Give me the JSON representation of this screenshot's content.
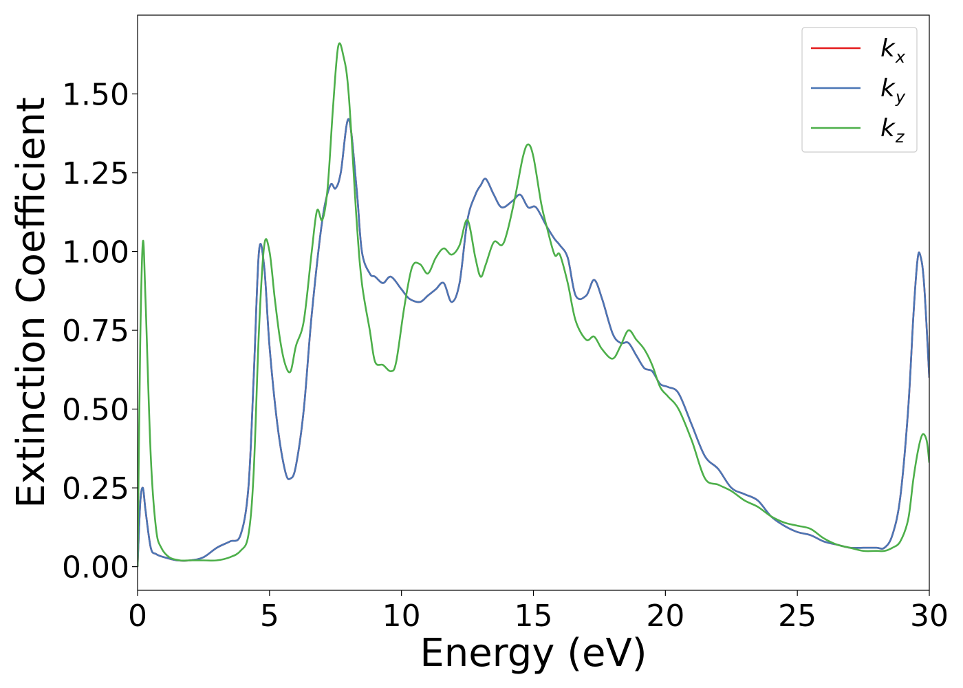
{
  "chart_data": {
    "type": "line",
    "xlabel": "Energy (eV)",
    "ylabel": "Extinction Coefficient",
    "xlim": [
      0,
      30
    ],
    "ylim": [
      -0.075,
      1.75
    ],
    "xticks": [
      0,
      5,
      10,
      15,
      20,
      25,
      30
    ],
    "xtick_labels": [
      "0",
      "5",
      "10",
      "15",
      "20",
      "25",
      "30"
    ],
    "yticks": [
      0,
      0.25,
      0.5,
      0.75,
      1.0,
      1.25,
      1.5
    ],
    "ytick_labels": [
      "0.00",
      "0.25",
      "0.50",
      "0.75",
      "1.00",
      "1.25",
      "1.50"
    ],
    "grid": false,
    "legend_position": "top-right",
    "series": [
      {
        "name": "k_x",
        "label_base": "k",
        "label_sub": "x",
        "color": "#e41a1c",
        "x": [
          0,
          0.1,
          0.2,
          0.3,
          0.5,
          0.7,
          1.0,
          1.5,
          2.0,
          2.5,
          3.0,
          3.5,
          3.9,
          4.2,
          4.4,
          4.6,
          4.8,
          5.0,
          5.3,
          5.6,
          5.8,
          6.0,
          6.3,
          6.6,
          7.0,
          7.3,
          7.5,
          7.7,
          8.0,
          8.3,
          8.5,
          8.8,
          9.0,
          9.3,
          9.6,
          10.0,
          10.3,
          10.7,
          11.0,
          11.3,
          11.6,
          11.9,
          12.2,
          12.5,
          12.8,
          13.0,
          13.2,
          13.5,
          13.8,
          14.2,
          14.5,
          14.8,
          15.1,
          15.5,
          15.8,
          16.0,
          16.3,
          16.6,
          17.0,
          17.3,
          17.6,
          18.0,
          18.3,
          18.6,
          18.9,
          19.2,
          19.5,
          19.8,
          20.1,
          20.5,
          21.0,
          21.5,
          22.0,
          22.5,
          23.0,
          23.5,
          24.0,
          24.5,
          25.0,
          25.5,
          26.0,
          26.5,
          27.0,
          27.5,
          28.0,
          28.3,
          28.6,
          28.9,
          29.2,
          29.4,
          29.55,
          29.65,
          29.8,
          30.0
        ],
        "y": [
          0.0,
          0.2,
          0.25,
          0.18,
          0.06,
          0.04,
          0.03,
          0.02,
          0.02,
          0.03,
          0.06,
          0.08,
          0.1,
          0.25,
          0.6,
          1.0,
          0.95,
          0.7,
          0.45,
          0.3,
          0.28,
          0.32,
          0.5,
          0.8,
          1.1,
          1.21,
          1.2,
          1.25,
          1.42,
          1.2,
          1.0,
          0.93,
          0.92,
          0.9,
          0.92,
          0.88,
          0.85,
          0.84,
          0.86,
          0.88,
          0.9,
          0.84,
          0.9,
          1.1,
          1.18,
          1.21,
          1.23,
          1.18,
          1.14,
          1.16,
          1.18,
          1.14,
          1.14,
          1.08,
          1.04,
          1.02,
          0.98,
          0.86,
          0.86,
          0.91,
          0.85,
          0.74,
          0.71,
          0.71,
          0.67,
          0.63,
          0.62,
          0.58,
          0.57,
          0.55,
          0.45,
          0.35,
          0.31,
          0.25,
          0.23,
          0.21,
          0.16,
          0.13,
          0.11,
          0.1,
          0.08,
          0.07,
          0.06,
          0.06,
          0.06,
          0.06,
          0.1,
          0.22,
          0.5,
          0.8,
          0.97,
          0.99,
          0.9,
          0.6
        ]
      },
      {
        "name": "k_y",
        "label_base": "k",
        "label_sub": "y",
        "color": "#4a76b5",
        "x": [
          0,
          0.1,
          0.2,
          0.3,
          0.5,
          0.7,
          1.0,
          1.5,
          2.0,
          2.5,
          3.0,
          3.5,
          3.9,
          4.2,
          4.4,
          4.6,
          4.8,
          5.0,
          5.3,
          5.6,
          5.8,
          6.0,
          6.3,
          6.6,
          7.0,
          7.3,
          7.5,
          7.7,
          8.0,
          8.3,
          8.5,
          8.8,
          9.0,
          9.3,
          9.6,
          10.0,
          10.3,
          10.7,
          11.0,
          11.3,
          11.6,
          11.9,
          12.2,
          12.5,
          12.8,
          13.0,
          13.2,
          13.5,
          13.8,
          14.2,
          14.5,
          14.8,
          15.1,
          15.5,
          15.8,
          16.0,
          16.3,
          16.6,
          17.0,
          17.3,
          17.6,
          18.0,
          18.3,
          18.6,
          18.9,
          19.2,
          19.5,
          19.8,
          20.1,
          20.5,
          21.0,
          21.5,
          22.0,
          22.5,
          23.0,
          23.5,
          24.0,
          24.5,
          25.0,
          25.5,
          26.0,
          26.5,
          27.0,
          27.5,
          28.0,
          28.3,
          28.6,
          28.9,
          29.2,
          29.4,
          29.55,
          29.65,
          29.8,
          30.0
        ],
        "y": [
          0.0,
          0.2,
          0.25,
          0.18,
          0.06,
          0.04,
          0.03,
          0.02,
          0.02,
          0.03,
          0.06,
          0.08,
          0.1,
          0.25,
          0.6,
          1.0,
          0.95,
          0.7,
          0.45,
          0.3,
          0.28,
          0.32,
          0.5,
          0.8,
          1.1,
          1.21,
          1.2,
          1.25,
          1.42,
          1.2,
          1.0,
          0.93,
          0.92,
          0.9,
          0.92,
          0.88,
          0.85,
          0.84,
          0.86,
          0.88,
          0.9,
          0.84,
          0.9,
          1.1,
          1.18,
          1.21,
          1.23,
          1.18,
          1.14,
          1.16,
          1.18,
          1.14,
          1.14,
          1.08,
          1.04,
          1.02,
          0.98,
          0.86,
          0.86,
          0.91,
          0.85,
          0.74,
          0.71,
          0.71,
          0.67,
          0.63,
          0.62,
          0.58,
          0.57,
          0.55,
          0.45,
          0.35,
          0.31,
          0.25,
          0.23,
          0.21,
          0.16,
          0.13,
          0.11,
          0.1,
          0.08,
          0.07,
          0.06,
          0.06,
          0.06,
          0.06,
          0.1,
          0.22,
          0.5,
          0.8,
          0.97,
          0.99,
          0.9,
          0.6
        ]
      },
      {
        "name": "k_z",
        "label_base": "k",
        "label_sub": "z",
        "color": "#4daf4a",
        "x": [
          0,
          0.1,
          0.2,
          0.3,
          0.5,
          0.7,
          0.9,
          1.2,
          1.6,
          2.0,
          2.5,
          3.0,
          3.5,
          3.9,
          4.2,
          4.4,
          4.6,
          4.8,
          5.0,
          5.2,
          5.4,
          5.6,
          5.8,
          6.0,
          6.3,
          6.6,
          6.8,
          7.0,
          7.2,
          7.4,
          7.6,
          7.8,
          8.0,
          8.3,
          8.5,
          8.8,
          9.0,
          9.3,
          9.6,
          9.8,
          10.1,
          10.4,
          10.7,
          11.0,
          11.3,
          11.6,
          11.9,
          12.2,
          12.5,
          12.8,
          13.0,
          13.2,
          13.5,
          13.8,
          14.0,
          14.3,
          14.6,
          14.8,
          15.0,
          15.3,
          15.5,
          15.8,
          16.0,
          16.3,
          16.6,
          17.0,
          17.3,
          17.6,
          18.0,
          18.3,
          18.6,
          18.9,
          19.2,
          19.5,
          19.8,
          20.1,
          20.5,
          21.0,
          21.5,
          22.0,
          22.5,
          23.0,
          23.5,
          24.0,
          24.5,
          25.0,
          25.5,
          26.0,
          26.5,
          27.0,
          27.5,
          28.0,
          28.3,
          28.6,
          28.9,
          29.2,
          29.4,
          29.6,
          29.75,
          29.9,
          30.0
        ],
        "y": [
          0.0,
          0.7,
          1.03,
          0.85,
          0.35,
          0.12,
          0.06,
          0.03,
          0.02,
          0.02,
          0.02,
          0.02,
          0.03,
          0.05,
          0.1,
          0.3,
          0.75,
          1.02,
          1.0,
          0.85,
          0.72,
          0.64,
          0.62,
          0.7,
          0.78,
          1.0,
          1.13,
          1.1,
          1.2,
          1.45,
          1.65,
          1.62,
          1.5,
          1.1,
          0.9,
          0.75,
          0.65,
          0.64,
          0.62,
          0.65,
          0.82,
          0.95,
          0.96,
          0.93,
          0.98,
          1.01,
          0.99,
          1.02,
          1.1,
          0.98,
          0.92,
          0.96,
          1.03,
          1.02,
          1.06,
          1.17,
          1.3,
          1.34,
          1.3,
          1.15,
          1.08,
          0.99,
          0.99,
          0.9,
          0.78,
          0.72,
          0.73,
          0.69,
          0.66,
          0.7,
          0.75,
          0.72,
          0.69,
          0.64,
          0.57,
          0.54,
          0.5,
          0.4,
          0.28,
          0.26,
          0.24,
          0.21,
          0.19,
          0.16,
          0.14,
          0.13,
          0.12,
          0.09,
          0.07,
          0.06,
          0.05,
          0.05,
          0.05,
          0.06,
          0.08,
          0.15,
          0.28,
          0.38,
          0.42,
          0.4,
          0.33
        ]
      }
    ]
  }
}
